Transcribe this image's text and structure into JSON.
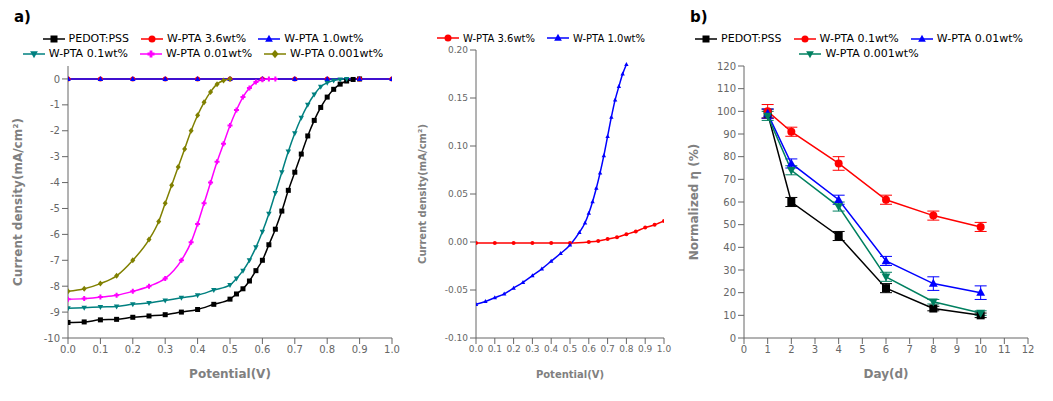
{
  "chart_data": [
    {
      "type": "line",
      "annotations": [
        "a)"
      ],
      "xlabel": "Potential(V)",
      "ylabel": "Current density(mA/cm²)",
      "xlim": [
        0.0,
        1.0
      ],
      "ylim": [
        -10,
        0.5
      ],
      "xticks": [
        {
          "value": 0.0,
          "label": "0.0"
        },
        0.1,
        0.2,
        0.3,
        0.4,
        0.5,
        0.6,
        0.7,
        0.8,
        0.9,
        {
          "value": 1.0,
          "label": "1.0"
        }
      ],
      "yticks": [
        0,
        -1,
        -2,
        -3,
        -4,
        -5,
        -6,
        -7,
        -8,
        -9,
        -10
      ],
      "legend": "top",
      "series": [
        {
          "name": "PEDOT:PSS",
          "color": "#000000",
          "marker": "square",
          "x": [
            0.0,
            0.05,
            0.1,
            0.15,
            0.2,
            0.25,
            0.3,
            0.35,
            0.4,
            0.45,
            0.5,
            0.52,
            0.54,
            0.56,
            0.58,
            0.6,
            0.62,
            0.64,
            0.66,
            0.68,
            0.7,
            0.72,
            0.74,
            0.76,
            0.78,
            0.8,
            0.82,
            0.84,
            0.86,
            0.88,
            0.9
          ],
          "values": [
            -9.4,
            -9.38,
            -9.3,
            -9.28,
            -9.2,
            -9.15,
            -9.1,
            -9.0,
            -8.9,
            -8.7,
            -8.5,
            -8.3,
            -8.1,
            -7.8,
            -7.4,
            -7.0,
            -6.4,
            -5.8,
            -5.1,
            -4.3,
            -3.6,
            -2.9,
            -2.2,
            -1.6,
            -1.1,
            -0.7,
            -0.4,
            -0.2,
            -0.08,
            -0.02,
            0.0
          ]
        },
        {
          "name": "W-PTA 3.6wt%",
          "color": "#ff0000",
          "marker": "circle",
          "x": [
            0.0,
            0.1,
            0.2,
            0.3,
            0.4,
            0.5,
            0.6,
            0.7,
            0.8,
            0.9,
            1.0
          ],
          "values": [
            0.0,
            0.0,
            0.0,
            0.0,
            0.0,
            0.0,
            0.0,
            0.0,
            0.0,
            0.0,
            0.0
          ]
        },
        {
          "name": "W-PTA 1.0wt%",
          "color": "#0000ff",
          "marker": "triangle-up",
          "x": [
            0.0,
            0.1,
            0.2,
            0.3,
            0.4,
            0.5,
            0.6,
            0.7,
            0.8,
            0.9,
            1.0
          ],
          "values": [
            0.0,
            0.0,
            0.0,
            0.0,
            0.0,
            0.0,
            0.0,
            0.0,
            0.0,
            0.0,
            0.0
          ]
        },
        {
          "name": "W-PTA 0.1wt%",
          "color": "#008080",
          "marker": "triangle-down",
          "x": [
            0.0,
            0.05,
            0.1,
            0.15,
            0.2,
            0.25,
            0.3,
            0.35,
            0.4,
            0.45,
            0.5,
            0.52,
            0.54,
            0.56,
            0.58,
            0.6,
            0.62,
            0.64,
            0.66,
            0.68,
            0.7,
            0.72,
            0.74,
            0.76,
            0.78,
            0.8,
            0.82,
            0.84,
            0.86
          ],
          "values": [
            -8.85,
            -8.83,
            -8.8,
            -8.78,
            -8.7,
            -8.65,
            -8.55,
            -8.45,
            -8.35,
            -8.15,
            -7.95,
            -7.7,
            -7.4,
            -7.0,
            -6.5,
            -5.9,
            -5.2,
            -4.4,
            -3.6,
            -2.8,
            -2.1,
            -1.5,
            -1.0,
            -0.6,
            -0.3,
            -0.15,
            -0.06,
            -0.02,
            0.0
          ]
        },
        {
          "name": "W-PTA 0.01wt%",
          "color": "#ff00ff",
          "marker": "plus",
          "x": [
            0.0,
            0.05,
            0.1,
            0.15,
            0.2,
            0.25,
            0.3,
            0.35,
            0.38,
            0.4,
            0.42,
            0.44,
            0.46,
            0.48,
            0.5,
            0.52,
            0.54,
            0.56,
            0.58,
            0.6,
            0.62,
            0.64
          ],
          "values": [
            -8.5,
            -8.48,
            -8.42,
            -8.35,
            -8.2,
            -8.0,
            -7.7,
            -7.0,
            -6.3,
            -5.6,
            -4.8,
            -4.0,
            -3.2,
            -2.5,
            -1.8,
            -1.2,
            -0.7,
            -0.35,
            -0.12,
            -0.03,
            -0.005,
            0.0
          ]
        },
        {
          "name": "W-PTA 0.001wt%",
          "color": "#808000",
          "marker": "diamond",
          "x": [
            0.0,
            0.05,
            0.1,
            0.15,
            0.2,
            0.25,
            0.28,
            0.3,
            0.32,
            0.34,
            0.36,
            0.38,
            0.4,
            0.42,
            0.44,
            0.46,
            0.48,
            0.5
          ],
          "values": [
            -8.2,
            -8.1,
            -7.9,
            -7.6,
            -7.0,
            -6.2,
            -5.5,
            -4.8,
            -4.1,
            -3.4,
            -2.7,
            -2.0,
            -1.4,
            -0.9,
            -0.5,
            -0.2,
            -0.06,
            0.0
          ]
        }
      ]
    },
    {
      "type": "line",
      "xlabel": "Potential(V)",
      "ylabel": "Current density(mA/cm²)",
      "xlim": [
        0.0,
        1.0
      ],
      "ylim": [
        -0.1,
        0.2
      ],
      "xticks": [
        {
          "value": 0.0,
          "label": "0.0"
        },
        0.1,
        0.2,
        0.3,
        0.4,
        0.5,
        0.6,
        0.7,
        0.8,
        0.9,
        {
          "value": 1.0,
          "label": "1.0"
        }
      ],
      "yticks": [
        {
          "value": -0.1,
          "label": "-0.10"
        },
        -0.05,
        {
          "value": 0.0,
          "label": "0.00"
        },
        0.05,
        {
          "value": 0.1,
          "label": "0.10"
        },
        0.15,
        {
          "value": 0.2,
          "label": "0.20"
        }
      ],
      "legend": "top",
      "series": [
        {
          "name": "W-PTA 3.6wt%",
          "color": "#ff0000",
          "marker": "circle",
          "x": [
            0.0,
            0.1,
            0.2,
            0.3,
            0.4,
            0.5,
            0.6,
            0.65,
            0.7,
            0.75,
            0.8,
            0.85,
            0.9,
            0.95,
            1.0
          ],
          "values": [
            -0.001,
            -0.001,
            -0.001,
            -0.001,
            -0.001,
            -0.001,
            0.0,
            0.001,
            0.003,
            0.005,
            0.008,
            0.011,
            0.015,
            0.018,
            0.022
          ]
        },
        {
          "name": "W-PTA 1.0wt%",
          "color": "#0000ff",
          "marker": "triangle-up",
          "x": [
            0.0,
            0.05,
            0.1,
            0.15,
            0.2,
            0.25,
            0.3,
            0.35,
            0.4,
            0.45,
            0.5,
            0.55,
            0.58,
            0.6,
            0.62,
            0.64,
            0.66,
            0.68,
            0.7,
            0.72,
            0.74,
            0.76,
            0.78,
            0.8
          ],
          "values": [
            -0.065,
            -0.062,
            -0.058,
            -0.054,
            -0.048,
            -0.042,
            -0.035,
            -0.028,
            -0.02,
            -0.012,
            -0.003,
            0.01,
            0.02,
            0.03,
            0.042,
            0.056,
            0.072,
            0.09,
            0.11,
            0.13,
            0.148,
            0.162,
            0.175,
            0.185
          ]
        }
      ]
    },
    {
      "type": "line",
      "annotations": [
        "b)"
      ],
      "xlabel": "Day(d)",
      "ylabel": "Normalized η (%)",
      "xlim": [
        0,
        12
      ],
      "ylim": [
        0,
        120
      ],
      "xticks": [
        0,
        1,
        2,
        3,
        4,
        5,
        6,
        7,
        8,
        9,
        10,
        11,
        12
      ],
      "yticks": [
        0,
        10,
        20,
        30,
        40,
        50,
        60,
        70,
        80,
        90,
        100,
        110,
        120
      ],
      "legend": "top",
      "series": [
        {
          "name": "PEDOT:PSS",
          "color": "#000000",
          "marker": "square",
          "x": [
            1,
            2,
            4,
            6,
            8,
            10
          ],
          "values": [
            99,
            60,
            45,
            22,
            13,
            10
          ],
          "yerr": [
            2,
            2,
            2,
            2,
            1,
            1
          ]
        },
        {
          "name": "W-PTA 0.1wt%",
          "color": "#ff0000",
          "marker": "circle",
          "x": [
            1,
            2,
            4,
            6,
            8,
            10
          ],
          "values": [
            100,
            91,
            77,
            61,
            54,
            49
          ],
          "yerr": [
            3,
            2,
            3,
            2,
            2,
            2
          ]
        },
        {
          "name": "W-PTA 0.01wt%",
          "color": "#0000ff",
          "marker": "triangle-up",
          "x": [
            1,
            2,
            4,
            6,
            8,
            10
          ],
          "values": [
            99,
            77,
            61,
            34,
            24,
            20
          ],
          "yerr": [
            2,
            2,
            2,
            2,
            3,
            3
          ]
        },
        {
          "name": "W-PTA 0.001wt%",
          "color": "#008060",
          "marker": "triangle-down",
          "x": [
            1,
            2,
            4,
            6,
            8,
            10
          ],
          "values": [
            98,
            74,
            58,
            27,
            16,
            11
          ],
          "yerr": [
            2,
            2,
            2,
            2,
            1,
            1
          ]
        }
      ]
    }
  ]
}
